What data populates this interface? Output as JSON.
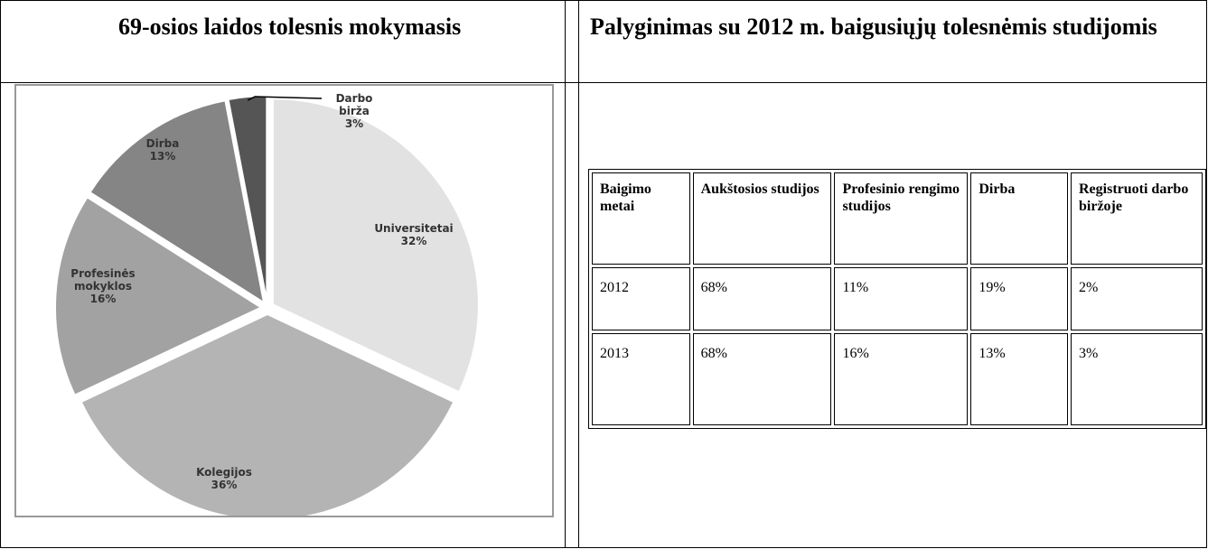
{
  "header": {
    "left": "69-osios laidos tolesnis mokymasis",
    "right": "Palyginimas su 2012 m. baigusiųjų tolesnėmis studijomis"
  },
  "chart_data": {
    "type": "pie",
    "categories": [
      "Universitetai",
      "Kolegijos",
      "Profesinės mokyklos",
      "Dirba",
      "Darbo birža"
    ],
    "values": [
      32,
      36,
      16,
      13,
      3
    ],
    "value_labels": [
      "32%",
      "36%",
      "16%",
      "13%",
      "3%"
    ],
    "colors": [
      "#e2e2e2",
      "#b4b4b4",
      "#a2a2a2",
      "#858585",
      "#555555"
    ]
  },
  "table": {
    "header": [
      "Baigimo metai",
      "Aukštosios studijos",
      "Profesinio rengimo studijos",
      "Dirba",
      "Registruoti darbo biržoje"
    ],
    "rows": [
      [
        "2012",
        "68%",
        "11%",
        "19%",
        "2%"
      ],
      [
        "2013",
        "68%",
        "16%",
        "13%",
        "3%"
      ]
    ]
  }
}
